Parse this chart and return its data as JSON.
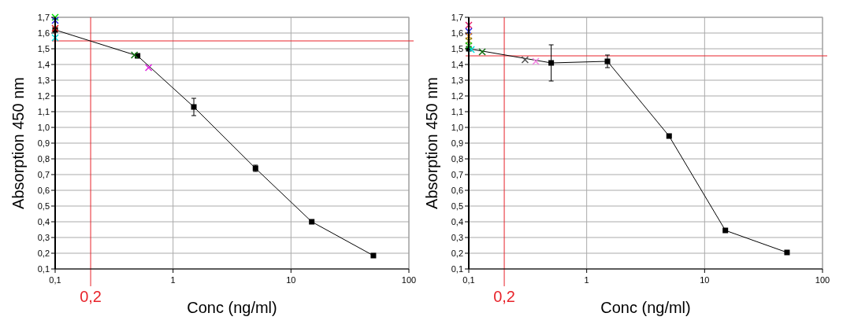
{
  "chart_data": [
    {
      "type": "line",
      "xlabel": "Conc (ng/ml)",
      "ylabel": "Absorption 450 nm",
      "log": "x",
      "grid": true,
      "xlim": [
        0.1,
        100
      ],
      "xticks": [
        {
          "value": 0.1,
          "label": "0,1"
        },
        1,
        10,
        100
      ],
      "ylim": [
        0.1,
        1.7
      ],
      "yticks": [
        {
          "value": 0.1,
          "label": "0,1"
        },
        {
          "value": 0.2,
          "label": "0,2"
        },
        {
          "value": 0.3,
          "label": "0,3"
        },
        {
          "value": 0.4,
          "label": "0,4"
        },
        {
          "value": 0.5,
          "label": "0,5"
        },
        {
          "value": 0.6,
          "label": "0,6"
        },
        {
          "value": 0.7,
          "label": "0,7"
        },
        {
          "value": 0.8,
          "label": "0,8"
        },
        {
          "value": 0.9,
          "label": "0,9"
        },
        {
          "value": 1.0,
          "label": "1,0"
        },
        {
          "value": 1.1,
          "label": "1,1"
        },
        {
          "value": 1.2,
          "label": "1,2"
        },
        {
          "value": 1.3,
          "label": "1,3"
        },
        {
          "value": 1.4,
          "label": "1,4"
        },
        {
          "value": 1.5,
          "label": "1,5"
        },
        {
          "value": 1.6,
          "label": "1,6"
        },
        {
          "value": 1.7,
          "label": "1,7"
        }
      ],
      "ref_lines": [
        {
          "axis": "x",
          "value": 0.2,
          "label": "0,2",
          "color": "#e8232a"
        },
        {
          "axis": "y",
          "value": 1.55,
          "color": "#e8232a"
        }
      ],
      "series": [
        {
          "color": "#000000",
          "marker": "square",
          "x": [
            0.1,
            0.5,
            1.5,
            5,
            15,
            50
          ],
          "values": [
            1.62,
            1.455,
            1.13,
            0.74,
            0.4,
            0.185
          ],
          "errors": [
            null,
            null,
            0.055,
            0.02,
            null,
            null
          ]
        },
        {
          "type": "scatter",
          "color": "#00e000",
          "marker": "cross",
          "x": [
            0.1
          ],
          "values": [
            1.7
          ]
        },
        {
          "type": "scatter",
          "color": "#2020e0",
          "marker": "cross",
          "x": [
            0.1
          ],
          "values": [
            1.68
          ]
        },
        {
          "type": "scatter",
          "color": "#e02020",
          "marker": "cross",
          "x": [
            0.1
          ],
          "values": [
            1.63
          ]
        },
        {
          "type": "scatter",
          "color": "#00d8d8",
          "marker": "cross",
          "x": [
            0.1
          ],
          "values": [
            1.57
          ]
        },
        {
          "type": "scatter",
          "color": "#107010",
          "marker": "cross",
          "x": [
            0.47
          ],
          "values": [
            1.46
          ]
        },
        {
          "type": "scatter",
          "color": "#e020e0",
          "marker": "cross",
          "x": [
            0.62
          ],
          "values": [
            1.38
          ]
        }
      ]
    },
    {
      "type": "line",
      "xlabel": "Conc (ng/ml)",
      "ylabel": "Absorption 450 nm",
      "log": "x",
      "grid": true,
      "xlim": [
        0.1,
        100
      ],
      "xticks": [
        {
          "value": 0.1,
          "label": "0,1"
        },
        1,
        10,
        100
      ],
      "ylim": [
        0.1,
        1.7
      ],
      "yticks": [
        {
          "value": 0.1,
          "label": "0,1"
        },
        {
          "value": 0.2,
          "label": "0,2"
        },
        {
          "value": 0.3,
          "label": "0,3"
        },
        {
          "value": 0.4,
          "label": "0,4"
        },
        {
          "value": 0.5,
          "label": "0,5"
        },
        {
          "value": 0.6,
          "label": "0,6"
        },
        {
          "value": 0.7,
          "label": "0,7"
        },
        {
          "value": 0.8,
          "label": "0,8"
        },
        {
          "value": 0.9,
          "label": "0,9"
        },
        {
          "value": 1.0,
          "label": "1,0"
        },
        {
          "value": 1.1,
          "label": "1,1"
        },
        {
          "value": 1.2,
          "label": "1,2"
        },
        {
          "value": 1.3,
          "label": "1,3"
        },
        {
          "value": 1.4,
          "label": "1,4"
        },
        {
          "value": 1.5,
          "label": "1,5"
        },
        {
          "value": 1.6,
          "label": "1,6"
        },
        {
          "value": 1.7,
          "label": "1,7"
        }
      ],
      "ref_lines": [
        {
          "axis": "x",
          "value": 0.2,
          "label": "0,2",
          "color": "#e8232a"
        },
        {
          "axis": "y",
          "value": 1.455,
          "color": "#e8232a"
        }
      ],
      "series": [
        {
          "color": "#000000",
          "marker": "square",
          "x": [
            0.1,
            0.5,
            1.5,
            5,
            15,
            50
          ],
          "values": [
            1.5,
            1.41,
            1.42,
            0.945,
            0.345,
            0.205
          ],
          "errors": [
            null,
            0.115,
            0.04,
            null,
            null,
            null
          ]
        },
        {
          "type": "scatter",
          "color": "#e0206a",
          "marker": "cross",
          "x": [
            0.1
          ],
          "values": [
            1.65
          ]
        },
        {
          "type": "scatter",
          "color": "#2020e0",
          "marker": "cross",
          "x": [
            0.1
          ],
          "values": [
            1.61
          ]
        },
        {
          "type": "scatter",
          "color": "#e08a20",
          "marker": "cross",
          "x": [
            0.1
          ],
          "values": [
            1.58
          ]
        },
        {
          "type": "scatter",
          "color": "#8a8a20",
          "marker": "cross",
          "x": [
            0.1
          ],
          "values": [
            1.55
          ]
        },
        {
          "type": "scatter",
          "color": "#20d020",
          "marker": "cross",
          "x": [
            0.1
          ],
          "values": [
            1.52
          ]
        },
        {
          "type": "scatter",
          "color": "#00e0e0",
          "marker": "cross",
          "x": [
            0.105
          ],
          "values": [
            1.495
          ]
        },
        {
          "type": "scatter",
          "color": "#107010",
          "marker": "cross",
          "x": [
            0.13
          ],
          "values": [
            1.48
          ]
        },
        {
          "type": "scatter",
          "color": "#505050",
          "marker": "cross",
          "x": [
            0.3
          ],
          "values": [
            1.43
          ]
        },
        {
          "type": "scatter",
          "color": "#f080e0",
          "marker": "cross",
          "x": [
            0.37
          ],
          "values": [
            1.42
          ]
        }
      ]
    }
  ]
}
